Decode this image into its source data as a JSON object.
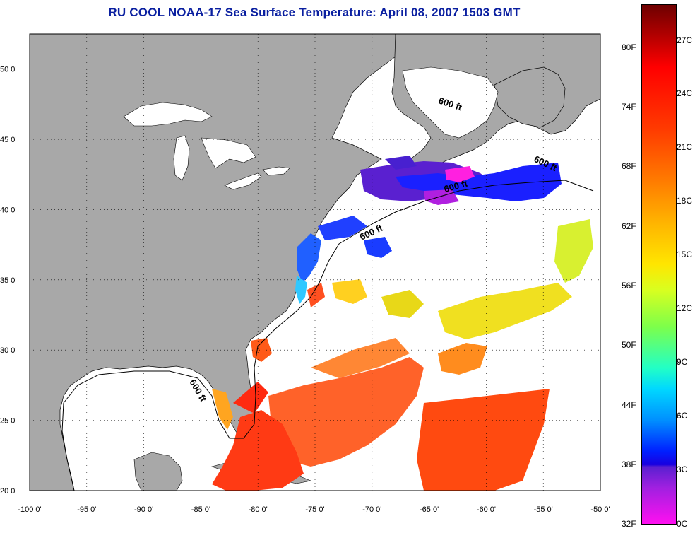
{
  "title": "RU COOL  NOAA-17  Sea Surface Temperature:  April 08, 2007 1503 GMT",
  "map": {
    "lon_ticks": [
      "-100 0'",
      "-95 0'",
      "-90 0'",
      "-85 0'",
      "-80 0'",
      "-75 0'",
      "-70 0'",
      "-65 0'",
      "-60 0'",
      "-55 0'",
      "-50 0'"
    ],
    "lat_ticks": [
      "50 0'",
      "45 0'",
      "40 0'",
      "35 0'",
      "30 0'",
      "25 0'",
      "20 0'"
    ],
    "isobath_labels": [
      "600 ft",
      "600 ft",
      "600 ft",
      "600 ft",
      "600 ft"
    ],
    "lon_range": [
      -100,
      -50
    ],
    "lat_range": [
      20,
      52.5
    ]
  },
  "colorbar": {
    "fahrenheit": [
      "80F",
      "74F",
      "68F",
      "62F",
      "56F",
      "50F",
      "44F",
      "38F",
      "32F"
    ],
    "celsius": [
      "27C",
      "24C",
      "21C",
      "18C",
      "15C",
      "12C",
      "9C",
      "6C",
      "3C",
      "0C"
    ]
  },
  "colors": {
    "land": "#a8a8a8",
    "title": "#0a1fa0",
    "cloud": "#ffffff"
  }
}
